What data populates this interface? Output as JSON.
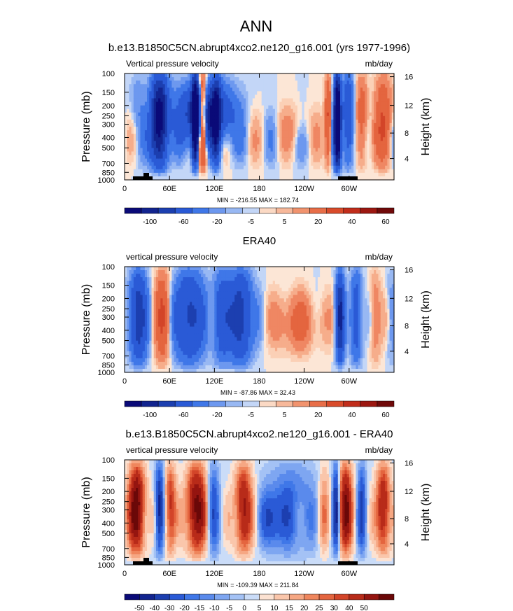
{
  "figure": {
    "title": "ANN"
  },
  "chart_data": [
    {
      "type": "heatmap",
      "title": "b.e13.B1850C5CN.abrupt4xco2.ne120_g16.001 (yrs 1977-1996)",
      "left_label": "Vertical pressure velocity",
      "right_label": "mb/day",
      "ylabel": "Pressure (mb)",
      "y2label": "Height (km)",
      "xticks": [
        "0",
        "60E",
        "120E",
        "180",
        "120W",
        "60W"
      ],
      "yticks": [
        "100",
        "150",
        "200",
        "250",
        "300",
        "400",
        "500",
        "700",
        "850",
        "1000"
      ],
      "y2ticks": [
        "16",
        "12",
        "8",
        "4"
      ],
      "stats": "MIN = -216.55  MAX = 182.74",
      "colorbar_labels": [
        "-100",
        "-60",
        "-20",
        "-5",
        "5",
        "20",
        "40",
        "60"
      ],
      "topography": true
    },
    {
      "type": "heatmap",
      "title": "ERA40",
      "left_label": "vertical pressure velocity",
      "right_label": "mb/day",
      "ylabel": "Pressure (mb)",
      "y2label": "Height (km)",
      "xticks": [
        "0",
        "60E",
        "120E",
        "180",
        "120W",
        "60W"
      ],
      "yticks": [
        "100",
        "150",
        "200",
        "250",
        "300",
        "400",
        "500",
        "700",
        "850",
        "1000"
      ],
      "y2ticks": [
        "16",
        "12",
        "8",
        "4"
      ],
      "stats": "MIN = -87.86  MAX = 32.43",
      "colorbar_labels": [
        "-100",
        "-60",
        "-20",
        "-5",
        "5",
        "20",
        "40",
        "60"
      ],
      "topography": false
    },
    {
      "type": "heatmap",
      "title": "b.e13.B1850C5CN.abrupt4xco2.ne120_g16.001 - ERA40",
      "left_label": "vertical pressure velocity",
      "right_label": "mb/day",
      "ylabel": "Pressure (mb)",
      "y2label": "Height (km)",
      "xticks": [
        "0",
        "60E",
        "120E",
        "180",
        "120W",
        "60W"
      ],
      "yticks": [
        "100",
        "150",
        "200",
        "250",
        "300",
        "400",
        "500",
        "700",
        "850",
        "1000"
      ],
      "y2ticks": [
        "16",
        "12",
        "8",
        "4"
      ],
      "stats": "MIN = -109.39  MAX = 211.84",
      "colorbar_labels": [
        "-50",
        "-40",
        "-30",
        "-20",
        "-15",
        "-10",
        "-5",
        "0",
        "5",
        "10",
        "15",
        "20",
        "25",
        "30",
        "40",
        "50"
      ],
      "topography": true
    }
  ]
}
